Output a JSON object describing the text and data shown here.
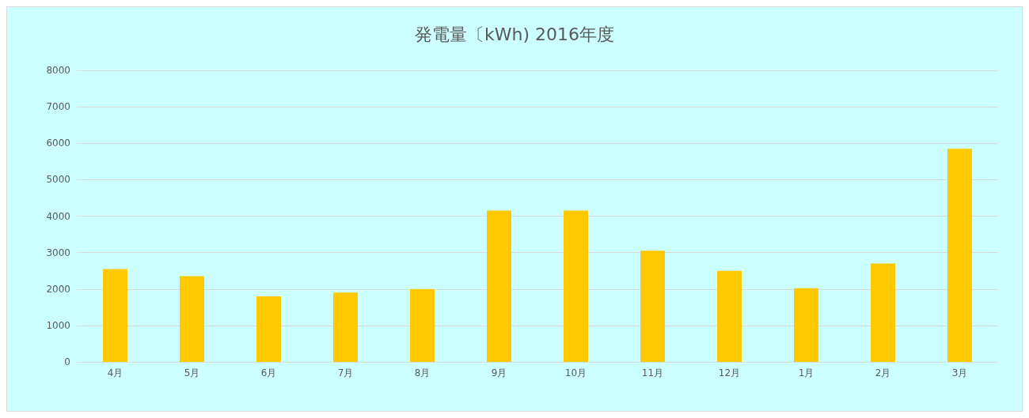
{
  "chart_data": {
    "type": "bar",
    "title": "発電量〔kWh) 2016年度",
    "categories": [
      "4月",
      "5月",
      "6月",
      "7月",
      "8月",
      "9月",
      "10月",
      "11月",
      "12月",
      "1月",
      "2月",
      "3月"
    ],
    "values": [
      2550,
      2350,
      1800,
      1900,
      2000,
      4150,
      4150,
      3050,
      2500,
      2020,
      2700,
      5850
    ],
    "color": "#ffc800",
    "ylim": [
      0,
      8000
    ],
    "yticks": [
      0,
      1000,
      2000,
      3000,
      4000,
      5000,
      6000,
      7000,
      8000
    ],
    "grid": "y"
  }
}
